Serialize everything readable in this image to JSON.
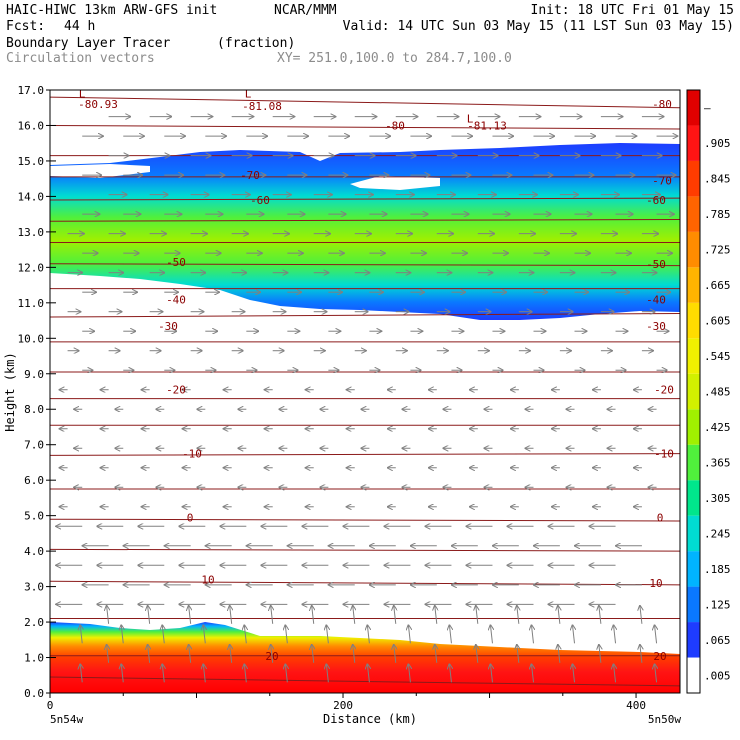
{
  "header": {
    "model": "HAIC-HIWC 13km ARW-GFS init",
    "org": "NCAR/MMM",
    "init": "Init: 18 UTC Fri 01 May 15",
    "fcst_label": "Fcst:",
    "fcst_value": "44 h",
    "valid": "Valid: 14 UTC Sun 03 May 15 (11 LST Sun 03 May 15)",
    "field_name": "Boundary Layer Tracer",
    "field_units": "(fraction)",
    "vectors": "Circulation vectors",
    "xy": "XY= 251.0,100.0 to 284.7,100.0"
  },
  "chart_data": {
    "type": "heatmap",
    "title": "Boundary Layer Tracer",
    "units": "(fraction)",
    "xlabel": "Distance (km)",
    "ylabel": "Height (km)",
    "xlim": [
      0,
      430
    ],
    "ylim": [
      0,
      17
    ],
    "x_ticks": [
      "0",
      "200",
      "400"
    ],
    "x_end_labels": [
      "5n54w",
      "5n50w"
    ],
    "y_ticks": [
      "0.0",
      "1.0",
      "2.0",
      "3.0",
      "4.0",
      "5.0",
      "6.0",
      "7.0",
      "8.0",
      "9.0",
      "10.0",
      "11.0",
      "12.0",
      "13.0",
      "14.0",
      "15.0",
      "16.0",
      "17.0"
    ],
    "colorbar": {
      "labels": [
        ".005",
        ".065",
        ".125",
        ".185",
        ".245",
        ".305",
        ".365",
        ".425",
        ".485",
        ".545",
        ".605",
        ".665",
        ".725",
        ".785",
        ".845",
        ".905",
        "–"
      ],
      "colors": [
        "#ffffff",
        "#1e3cff",
        "#0a78ff",
        "#00b4ff",
        "#00dcd2",
        "#00e68c",
        "#50f03c",
        "#a0f000",
        "#d2f000",
        "#f0f000",
        "#ffdc00",
        "#ffb400",
        "#ff8c00",
        "#ff6400",
        "#ff3c00",
        "#ff1414",
        "#e10000"
      ]
    },
    "field_regions": [
      {
        "name": "boundary layer",
        "x": [
          0,
          430
        ],
        "top_km": [
          2.0,
          1.9,
          1.9,
          1.6,
          1.7,
          1.6,
          1.5,
          1.3,
          1.2,
          1.0
        ],
        "max_fraction": 0.95
      },
      {
        "name": "upper layer",
        "x": [
          0,
          430
        ],
        "bottom_km": [
          12.0,
          11.4,
          11.1,
          10.9,
          10.9,
          10.9
        ],
        "top_km": [
          14.8,
          15.2,
          15.0,
          15.3,
          15.4,
          15.4
        ],
        "max_fraction": 0.45
      }
    ],
    "contour_labels": [
      "-80.93",
      "-81.08",
      "-81.13",
      "-80",
      "-80",
      "-70",
      "-70",
      "-60",
      "-60",
      "-50",
      "-50",
      "-40",
      "-40",
      "-30",
      "-30",
      "-20",
      "-20",
      "-10",
      "-10",
      "0",
      "0",
      "10",
      "10",
      "20",
      "20"
    ],
    "lows": [
      "L",
      "L",
      "L"
    ],
    "vectors": {
      "description": "Circulation vectors",
      "upper_direction": "eastward",
      "lower_direction": "westward",
      "reversal_height_km": 9.0
    }
  }
}
